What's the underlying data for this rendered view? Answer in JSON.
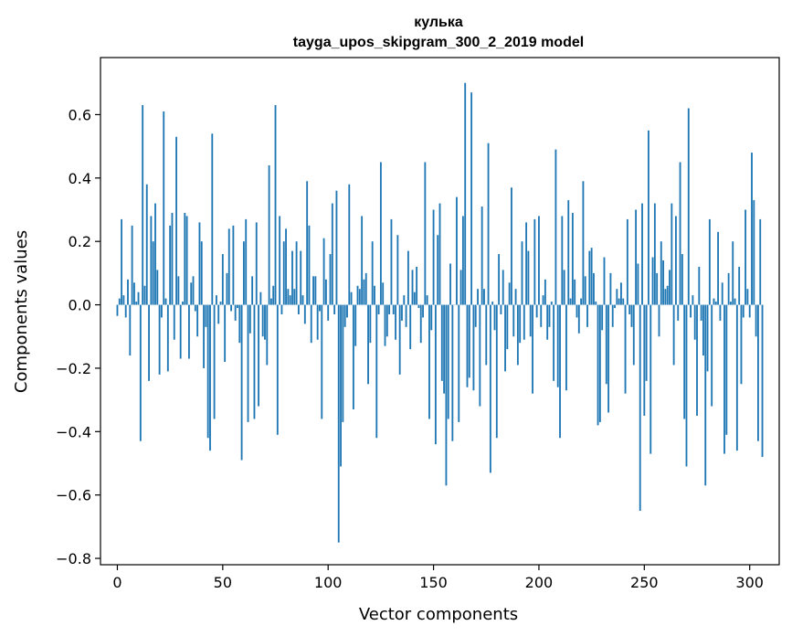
{
  "chart_data": {
    "type": "bar",
    "title": "кулька",
    "subtitle": "tayga_upos_skipgram_300_2_2019 model",
    "xlabel": "Vector components",
    "ylabel": "Components values",
    "xlim": [
      -8,
      314
    ],
    "ylim": [
      -0.82,
      0.78
    ],
    "xticks": [
      0,
      50,
      100,
      150,
      200,
      250,
      300
    ],
    "yticks": [
      -0.8,
      -0.6,
      -0.4,
      -0.2,
      0.0,
      0.2,
      0.4,
      0.6
    ],
    "ytick_labels": [
      "−0.8",
      "−0.6",
      "−0.4",
      "−0.2",
      "0.0",
      "0.2",
      "0.4",
      "0.6"
    ],
    "grid": false,
    "bar_color": "#1f77b4",
    "values": [
      -0.035,
      0.02,
      0.27,
      0.03,
      -0.04,
      0.08,
      -0.16,
      0.25,
      0.07,
      0.01,
      0.04,
      -0.43,
      0.63,
      0.06,
      0.38,
      -0.24,
      0.28,
      0.2,
      0.32,
      0.11,
      -0.22,
      -0.04,
      0.61,
      0.02,
      -0.21,
      0.25,
      0.29,
      -0.11,
      0.53,
      0.09,
      -0.17,
      0.01,
      0.29,
      0.28,
      -0.17,
      0.07,
      0.09,
      -0.02,
      -0.1,
      0.26,
      0.2,
      -0.2,
      -0.07,
      -0.42,
      -0.46,
      0.54,
      -0.36,
      0.03,
      -0.06,
      0.01,
      0.16,
      -0.18,
      0.1,
      0.24,
      -0.02,
      0.25,
      -0.05,
      -0.01,
      -0.12,
      -0.49,
      0.2,
      0.27,
      -0.37,
      -0.09,
      0.09,
      -0.36,
      0.26,
      -0.32,
      0.04,
      -0.1,
      -0.11,
      -0.19,
      0.44,
      0.02,
      0.06,
      0.63,
      -0.41,
      0.28,
      -0.03,
      0.2,
      0.24,
      0.05,
      0.03,
      0.17,
      0.05,
      0.2,
      -0.03,
      0.17,
      0.03,
      -0.06,
      0.39,
      0.25,
      -0.12,
      0.09,
      0.09,
      -0.11,
      -0.02,
      -0.36,
      0.21,
      0.08,
      -0.05,
      0.16,
      0.32,
      -0.03,
      0.36,
      -0.75,
      -0.51,
      -0.37,
      -0.07,
      -0.04,
      0.38,
      0.04,
      -0.33,
      -0.13,
      0.06,
      0.05,
      0.28,
      0.08,
      0.1,
      -0.25,
      -0.12,
      0.2,
      0.06,
      -0.42,
      -0.03,
      0.45,
      0.07,
      -0.13,
      -0.1,
      -0.03,
      0.27,
      -0.03,
      -0.11,
      0.22,
      -0.22,
      -0.05,
      0.03,
      -0.07,
      0.17,
      -0.14,
      0.11,
      0.04,
      0.12,
      -0.01,
      -0.12,
      -0.04,
      0.45,
      0.03,
      -0.36,
      -0.08,
      0.3,
      -0.44,
      0.22,
      0.32,
      -0.24,
      -0.28,
      -0.57,
      -0.36,
      0.13,
      -0.43,
      0.0,
      0.34,
      -0.37,
      0.11,
      0.28,
      0.7,
      -0.26,
      -0.23,
      0.67,
      -0.27,
      -0.07,
      0.05,
      -0.32,
      0.31,
      0.05,
      -0.19,
      0.51,
      -0.53,
      0.01,
      -0.08,
      -0.42,
      0.16,
      -0.03,
      0.11,
      -0.21,
      -0.14,
      0.07,
      0.37,
      -0.1,
      0.05,
      -0.19,
      -0.12,
      0.2,
      -0.11,
      0.26,
      0.17,
      -0.1,
      -0.28,
      0.27,
      -0.04,
      0.28,
      -0.07,
      0.03,
      0.08,
      -0.11,
      -0.07,
      0.01,
      -0.24,
      0.49,
      -0.26,
      -0.42,
      0.28,
      0.11,
      -0.27,
      0.33,
      0.02,
      0.29,
      0.08,
      -0.04,
      -0.09,
      0.02,
      0.39,
      0.09,
      -0.07,
      0.17,
      0.18,
      0.1,
      0.01,
      -0.38,
      -0.37,
      -0.08,
      0.15,
      -0.25,
      -0.34,
      0.1,
      -0.07,
      -0.01,
      0.05,
      0.02,
      0.07,
      0.02,
      -0.28,
      0.27,
      -0.03,
      -0.07,
      -0.19,
      0.3,
      0.13,
      -0.65,
      0.32,
      -0.35,
      -0.24,
      0.55,
      -0.47,
      0.15,
      0.32,
      0.1,
      -0.1,
      0.2,
      0.14,
      0.05,
      0.06,
      0.11,
      0.32,
      -0.19,
      0.28,
      -0.05,
      0.45,
      0.16,
      -0.36,
      -0.51,
      0.62,
      -0.04,
      0.03,
      -0.11,
      -0.35,
      0.12,
      -0.05,
      -0.16,
      -0.57,
      -0.21,
      0.27,
      -0.32,
      0.02,
      0.01,
      0.23,
      -0.05,
      0.07,
      -0.47,
      -0.41,
      0.1,
      0.01,
      0.2,
      0.02,
      -0.46,
      0.12,
      -0.25,
      -0.04,
      0.3,
      0.05,
      -0.04,
      0.48,
      0.33,
      -0.1,
      -0.43,
      0.27,
      -0.48
    ]
  }
}
